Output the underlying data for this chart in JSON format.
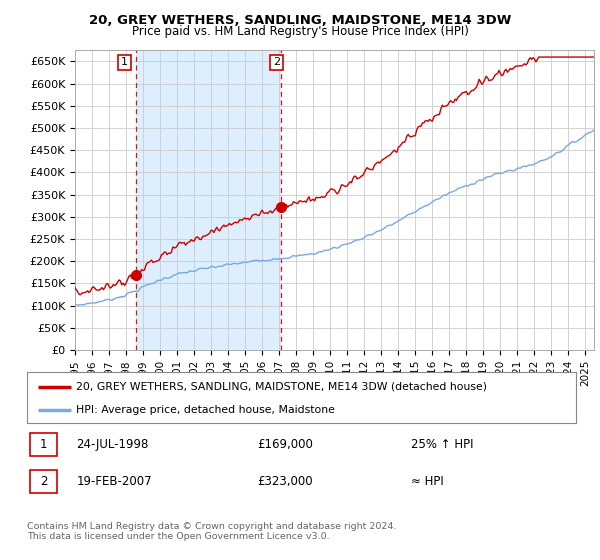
{
  "title1": "20, GREY WETHERS, SANDLING, MAIDSTONE, ME14 3DW",
  "title2": "Price paid vs. HM Land Registry's House Price Index (HPI)",
  "ylabel_ticks": [
    "£0",
    "£50K",
    "£100K",
    "£150K",
    "£200K",
    "£250K",
    "£300K",
    "£350K",
    "£400K",
    "£450K",
    "£500K",
    "£550K",
    "£600K",
    "£650K"
  ],
  "ytick_values": [
    0,
    50000,
    100000,
    150000,
    200000,
    250000,
    300000,
    350000,
    400000,
    450000,
    500000,
    550000,
    600000,
    650000
  ],
  "ylim": [
    0,
    675000
  ],
  "xlim_start": 1995.0,
  "xlim_end": 2025.5,
  "hpi_color": "#7aaadd",
  "price_color": "#cc0000",
  "bg_color": "#ffffff",
  "shade_color": "#ddeeff",
  "grid_color": "#cccccc",
  "sale1_date": 1998.56,
  "sale1_price": 169000,
  "sale2_date": 2007.13,
  "sale2_price": 323000,
  "legend_line1": "20, GREY WETHERS, SANDLING, MAIDSTONE, ME14 3DW (detached house)",
  "legend_line2": "HPI: Average price, detached house, Maidstone",
  "table_row1_num": "1",
  "table_row1_date": "24-JUL-1998",
  "table_row1_price": "£169,000",
  "table_row1_hpi": "25% ↑ HPI",
  "table_row2_num": "2",
  "table_row2_date": "19-FEB-2007",
  "table_row2_price": "£323,000",
  "table_row2_hpi": "≈ HPI",
  "footer": "Contains HM Land Registry data © Crown copyright and database right 2024.\nThis data is licensed under the Open Government Licence v3.0."
}
